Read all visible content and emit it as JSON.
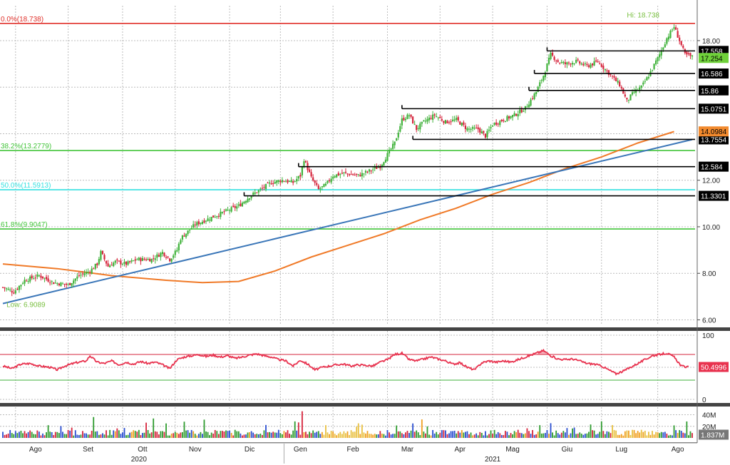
{
  "chart_data": {
    "type": "line",
    "panels": [
      {
        "name": "price",
        "type": "candlestick",
        "y_ticks": [
          6.0,
          8.0,
          10.0,
          12.0,
          18.0
        ],
        "ylim": [
          5.8,
          19.5
        ],
        "x_domain": [
          0,
          380
        ],
        "close_series": [
          [
            0,
            7.4
          ],
          [
            6,
            7.2
          ],
          [
            12,
            7.7
          ],
          [
            20,
            7.9
          ],
          [
            28,
            7.6
          ],
          [
            36,
            7.5
          ],
          [
            42,
            7.9
          ],
          [
            48,
            8.1
          ],
          [
            52,
            8.4
          ],
          [
            54,
            8.9
          ],
          [
            58,
            8.3
          ],
          [
            62,
            8.5
          ],
          [
            68,
            8.4
          ],
          [
            74,
            8.6
          ],
          [
            82,
            8.6
          ],
          [
            88,
            8.9
          ],
          [
            92,
            8.6
          ],
          [
            96,
            9.0
          ],
          [
            98,
            9.5
          ],
          [
            102,
            9.8
          ],
          [
            106,
            10.1
          ],
          [
            112,
            10.3
          ],
          [
            118,
            10.5
          ],
          [
            124,
            10.7
          ],
          [
            130,
            10.9
          ],
          [
            136,
            11.3
          ],
          [
            142,
            11.6
          ],
          [
            148,
            11.9
          ],
          [
            154,
            12.0
          ],
          [
            160,
            11.9
          ],
          [
            164,
            12.2
          ],
          [
            166,
            12.9
          ],
          [
            170,
            12.1
          ],
          [
            174,
            11.6
          ],
          [
            178,
            11.8
          ],
          [
            182,
            12.2
          ],
          [
            188,
            12.3
          ],
          [
            196,
            12.2
          ],
          [
            202,
            12.4
          ],
          [
            208,
            12.6
          ],
          [
            212,
            13.1
          ],
          [
            216,
            13.6
          ],
          [
            220,
            14.6
          ],
          [
            224,
            14.8
          ],
          [
            228,
            14.2
          ],
          [
            232,
            14.5
          ],
          [
            238,
            14.8
          ],
          [
            244,
            14.5
          ],
          [
            250,
            14.6
          ],
          [
            256,
            14.2
          ],
          [
            262,
            14.2
          ],
          [
            266,
            13.9
          ],
          [
            270,
            14.4
          ],
          [
            276,
            14.6
          ],
          [
            282,
            14.8
          ],
          [
            288,
            15.1
          ],
          [
            294,
            15.8
          ],
          [
            298,
            16.5
          ],
          [
            302,
            17.4
          ],
          [
            306,
            17.1
          ],
          [
            310,
            17.0
          ],
          [
            316,
            17.1
          ],
          [
            322,
            16.9
          ],
          [
            328,
            17.1
          ],
          [
            334,
            16.6
          ],
          [
            340,
            16.1
          ],
          [
            344,
            15.4
          ],
          [
            348,
            15.8
          ],
          [
            352,
            16.0
          ],
          [
            356,
            16.5
          ],
          [
            362,
            17.4
          ],
          [
            366,
            18.1
          ],
          [
            370,
            18.6
          ],
          [
            372,
            18.2
          ],
          [
            376,
            17.4
          ],
          [
            380,
            17.3
          ]
        ],
        "ma_series": [
          [
            0,
            8.4
          ],
          [
            30,
            8.2
          ],
          [
            60,
            7.9
          ],
          [
            90,
            7.7
          ],
          [
            110,
            7.6
          ],
          [
            130,
            7.65
          ],
          [
            150,
            8.1
          ],
          [
            170,
            8.7
          ],
          [
            190,
            9.2
          ],
          [
            210,
            9.7
          ],
          [
            230,
            10.3
          ],
          [
            250,
            10.8
          ],
          [
            270,
            11.4
          ],
          [
            290,
            11.9
          ],
          [
            310,
            12.5
          ],
          [
            330,
            13.0
          ],
          [
            350,
            13.6
          ],
          [
            370,
            14.09
          ]
        ],
        "trendline": [
          [
            0,
            6.7
          ],
          [
            380,
            13.75
          ]
        ],
        "fibonacci": [
          {
            "label": "0.0%(18.738)",
            "value": 18.738,
            "color": "#e0302a"
          },
          {
            "label": "38.2%(13.2779)",
            "value": 13.2779,
            "color": "#42c43a"
          },
          {
            "label": "50.0%(11.5913)",
            "value": 11.5913,
            "color": "#35e0e0"
          },
          {
            "label": "61.8%(9.9047)",
            "value": 9.9047,
            "color": "#42c43a"
          }
        ],
        "levels": [
          {
            "label": "17.558",
            "value": 17.558,
            "x_from": 300
          },
          {
            "label": "16.586",
            "value": 16.586,
            "x_from": 293
          },
          {
            "label": "15.86",
            "value": 15.86,
            "x_from": 290
          },
          {
            "label": "15.0751",
            "value": 15.0751,
            "x_from": 220
          },
          {
            "label": "13.7554",
            "value": 13.7554,
            "x_from": 226
          },
          {
            "label": "12.584",
            "value": 12.584,
            "x_from": 163
          },
          {
            "label": "11.3301",
            "value": 11.3301,
            "x_from": 133
          }
        ],
        "price_tags": [
          {
            "label": "17.254",
            "value": 17.254,
            "bg": "#6fd13a",
            "fg": "#000000"
          },
          {
            "label": "14.0984",
            "value": 14.0984,
            "bg": "#f28a2e",
            "fg": "#000000"
          }
        ],
        "annotations": [
          {
            "label": "Hi: 18.738",
            "x": 344,
            "value": 19.0
          },
          {
            "label": "Low: 6.9089",
            "x": 2,
            "value": 6.55
          }
        ]
      },
      {
        "name": "rsi",
        "y_ticks": [
          0,
          50,
          100
        ],
        "ylim": [
          0,
          100
        ],
        "upper": 70,
        "lower": 30,
        "last_value_label": "50.4996",
        "series": [
          [
            0,
            52
          ],
          [
            5,
            48
          ],
          [
            10,
            55
          ],
          [
            15,
            56
          ],
          [
            20,
            52
          ],
          [
            26,
            50
          ],
          [
            30,
            46
          ],
          [
            34,
            52
          ],
          [
            40,
            57
          ],
          [
            46,
            60
          ],
          [
            48,
            68
          ],
          [
            52,
            58
          ],
          [
            56,
            56
          ],
          [
            60,
            60
          ],
          [
            64,
            54
          ],
          [
            68,
            58
          ],
          [
            72,
            55
          ],
          [
            76,
            59
          ],
          [
            80,
            56
          ],
          [
            84,
            58
          ],
          [
            88,
            54
          ],
          [
            92,
            48
          ],
          [
            96,
            62
          ],
          [
            100,
            66
          ],
          [
            104,
            68
          ],
          [
            108,
            70
          ],
          [
            112,
            67
          ],
          [
            116,
            69
          ],
          [
            120,
            66
          ],
          [
            124,
            68
          ],
          [
            128,
            64
          ],
          [
            132,
            66
          ],
          [
            136,
            69
          ],
          [
            140,
            71
          ],
          [
            144,
            68
          ],
          [
            148,
            66
          ],
          [
            152,
            62
          ],
          [
            156,
            60
          ],
          [
            160,
            52
          ],
          [
            164,
            61
          ],
          [
            168,
            55
          ],
          [
            172,
            46
          ],
          [
            176,
            50
          ],
          [
            180,
            52
          ],
          [
            184,
            54
          ],
          [
            188,
            55
          ],
          [
            192,
            52
          ],
          [
            196,
            54
          ],
          [
            200,
            53
          ],
          [
            204,
            52
          ],
          [
            208,
            58
          ],
          [
            212,
            62
          ],
          [
            216,
            70
          ],
          [
            220,
            72
          ],
          [
            224,
            62
          ],
          [
            228,
            60
          ],
          [
            232,
            63
          ],
          [
            236,
            66
          ],
          [
            240,
            63
          ],
          [
            244,
            60
          ],
          [
            248,
            55
          ],
          [
            252,
            57
          ],
          [
            256,
            50
          ],
          [
            260,
            46
          ],
          [
            264,
            57
          ],
          [
            268,
            60
          ],
          [
            272,
            58
          ],
          [
            276,
            60
          ],
          [
            280,
            58
          ],
          [
            284,
            62
          ],
          [
            288,
            66
          ],
          [
            292,
            70
          ],
          [
            296,
            74
          ],
          [
            298,
            76
          ],
          [
            302,
            68
          ],
          [
            306,
            63
          ],
          [
            310,
            62
          ],
          [
            314,
            63
          ],
          [
            318,
            60
          ],
          [
            322,
            56
          ],
          [
            326,
            55
          ],
          [
            330,
            52
          ],
          [
            334,
            46
          ],
          [
            338,
            40
          ],
          [
            342,
            44
          ],
          [
            346,
            50
          ],
          [
            350,
            56
          ],
          [
            354,
            62
          ],
          [
            358,
            68
          ],
          [
            362,
            70
          ],
          [
            366,
            72
          ],
          [
            370,
            66
          ],
          [
            374,
            52
          ],
          [
            378,
            50
          ]
        ]
      },
      {
        "name": "volume",
        "y_ticks_labels": [
          "40M",
          "20M"
        ],
        "y_tick_values": [
          40,
          20
        ],
        "ylim": [
          0,
          48
        ],
        "last_value_label": "1.837M"
      }
    ],
    "x_month_labels": [
      {
        "label": "Ago",
        "x": 18
      },
      {
        "label": "Set",
        "x": 47
      },
      {
        "label": "Ott",
        "x": 77
      },
      {
        "label": "Nov",
        "x": 106
      },
      {
        "label": "Dic",
        "x": 136
      },
      {
        "label": "Gen",
        "x": 164
      },
      {
        "label": "Feb",
        "x": 193
      },
      {
        "label": "Mar",
        "x": 223
      },
      {
        "label": "Apr",
        "x": 252
      },
      {
        "label": "Mag",
        "x": 281
      },
      {
        "label": "Giu",
        "x": 311
      },
      {
        "label": "Lug",
        "x": 341
      },
      {
        "label": "Ago",
        "x": 372
      }
    ],
    "x_year_labels": [
      {
        "label": "2020",
        "x": 75
      },
      {
        "label": "2021",
        "x": 270
      }
    ],
    "colors": {
      "up": "#3fb23a",
      "down": "#d6243c",
      "ma": "#f07a28",
      "trend": "#3a76b8",
      "rsi": "#e8334f",
      "rsi_fill": "#f3a0ae",
      "level": "#000000",
      "grid": "#bcbcbc",
      "separator": "#444444"
    }
  }
}
